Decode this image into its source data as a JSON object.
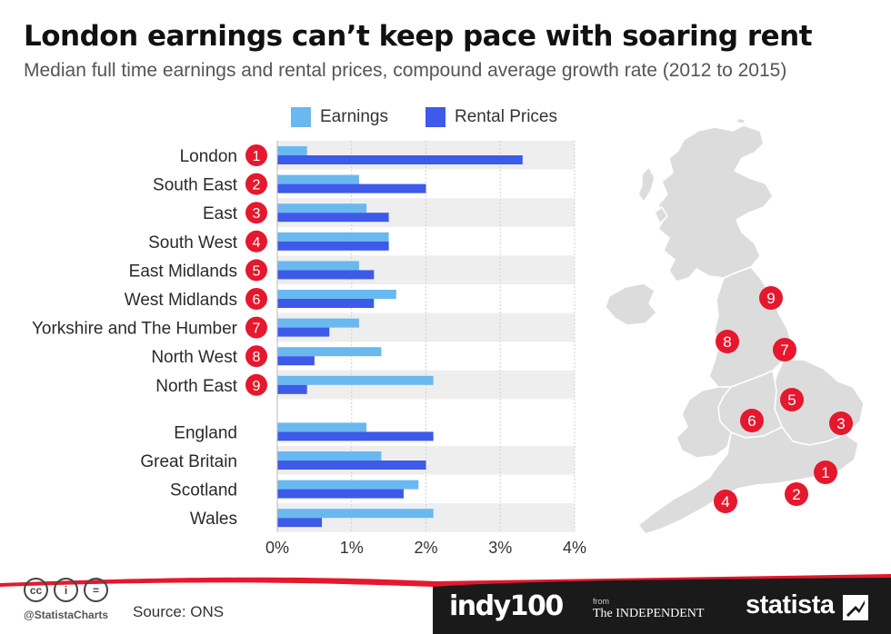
{
  "header": {
    "title": "London earnings can’t keep pace with soaring rent",
    "subtitle": "Median full time earnings and rental prices, compound average growth rate (2012 to 2015)"
  },
  "colors": {
    "earnings": "#6ab8f0",
    "rent": "#3d5ae8",
    "badge": "#e5182d",
    "band": "#eeeeee",
    "footer_red": "#e5182d",
    "footer_dark": "#1a1a1a",
    "map": "#dcdcdc"
  },
  "chart_data": {
    "type": "bar",
    "orientation": "horizontal",
    "categories": [
      "London",
      "South East",
      "East",
      "South West",
      "East Midlands",
      "West Midlands",
      "Yorkshire and The Humber",
      "North West",
      "North East",
      "England",
      "Great Britain",
      "Scotland",
      "Wales"
    ],
    "rank_badges": [
      "1",
      "2",
      "3",
      "4",
      "5",
      "6",
      "7",
      "8",
      "9"
    ],
    "series": [
      {
        "name": "Earnings",
        "values": [
          0.4,
          1.1,
          1.2,
          1.5,
          1.1,
          1.6,
          1.1,
          1.4,
          2.1,
          1.2,
          1.4,
          1.9,
          2.1
        ]
      },
      {
        "name": "Rental Prices",
        "values": [
          3.3,
          2.0,
          1.5,
          1.5,
          1.3,
          1.3,
          0.7,
          0.5,
          0.4,
          2.1,
          2.0,
          1.7,
          0.6
        ]
      }
    ],
    "x_ticks": [
      "0%",
      "1%",
      "2%",
      "3%",
      "4%"
    ],
    "xlim": [
      0,
      4
    ],
    "grid": true,
    "legend_position": "top"
  },
  "map": {
    "markers": [
      "1",
      "2",
      "3",
      "4",
      "5",
      "6",
      "7",
      "8",
      "9"
    ]
  },
  "footer": {
    "handle": "@StatistaCharts",
    "source": "Source: ONS",
    "cc_icons": [
      "cc",
      "i",
      "="
    ],
    "indy100": "indy100",
    "from": "from",
    "independent": "The INDEPENDENT",
    "statista": "statista"
  }
}
